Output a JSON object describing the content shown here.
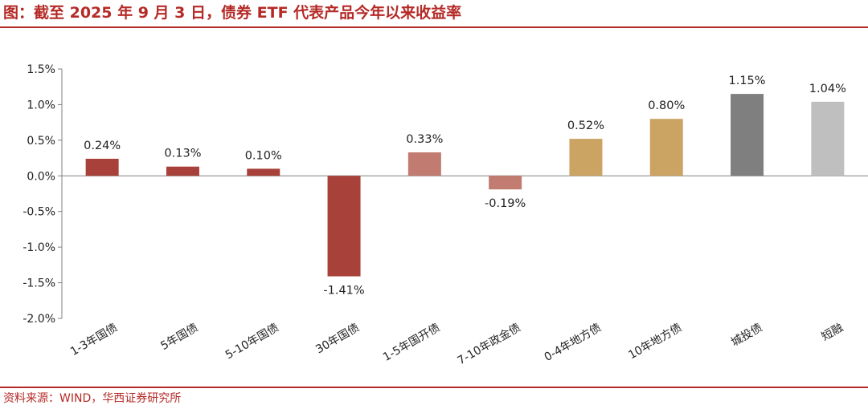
{
  "title": "图：截至 2025 年 9 月 3 日，债券 ETF 代表产品今年以来收益率",
  "source": "资料来源：WIND，华西证券研究所",
  "chart_data": {
    "type": "bar",
    "categories": [
      "1-3年国债",
      "5年国债",
      "5-10年国债",
      "30年国债",
      "1-5年国开债",
      "7-10年政金债",
      "0-4年地方债",
      "10年地方债",
      "城投债",
      "短融"
    ],
    "values": [
      0.24,
      0.13,
      0.1,
      -1.41,
      0.33,
      -0.19,
      0.52,
      0.8,
      1.15,
      1.04
    ],
    "data_labels": [
      "0.24%",
      "0.13%",
      "0.10%",
      "-1.41%",
      "0.33%",
      "-0.19%",
      "0.52%",
      "0.80%",
      "1.15%",
      "1.04%"
    ],
    "bar_colors": [
      "#a8413a",
      "#a8413a",
      "#a8413a",
      "#a8413a",
      "#c27b70",
      "#c27b70",
      "#cba463",
      "#cba463",
      "#7f7f7f",
      "#bfbfbf"
    ],
    "yticks": [
      1.5,
      1.0,
      0.5,
      0.0,
      -0.5,
      -1.0,
      -1.5,
      -2.0
    ],
    "ytick_labels": [
      "1.5%",
      "1.0%",
      "0.5%",
      "0.0%",
      "-0.5%",
      "-1.0%",
      "-1.5%",
      "-2.0%"
    ],
    "ylim": [
      -2.0,
      1.5
    ],
    "grid": false,
    "legend": "none",
    "xlabel": "",
    "ylabel": ""
  },
  "colors": {
    "brand": "#b52a26",
    "axis": "#808080"
  }
}
